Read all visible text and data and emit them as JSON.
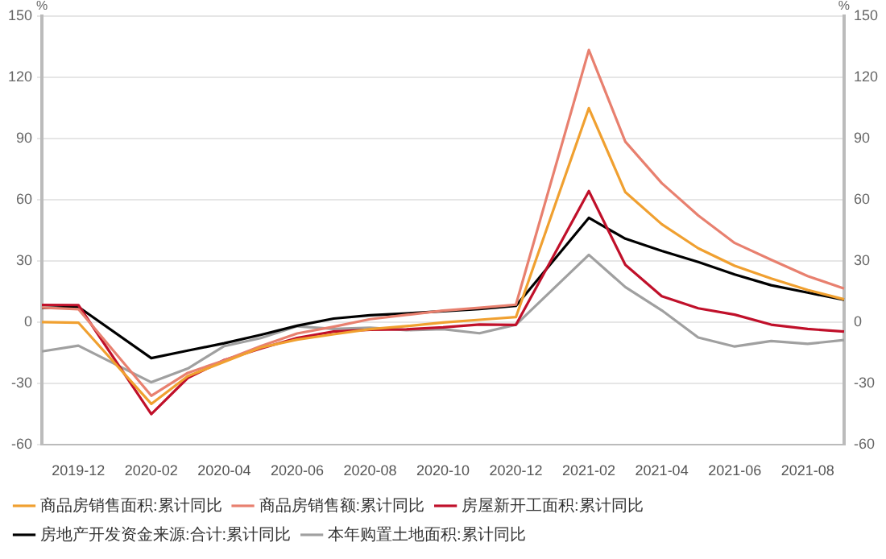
{
  "chart_data": {
    "type": "line",
    "ylabel": "%",
    "y2label": "%",
    "categories": [
      null,
      "2019-12",
      null,
      "2020-02",
      null,
      "2020-04",
      null,
      "2020-06",
      null,
      "2020-08",
      null,
      "2020-10",
      null,
      "2020-12",
      null,
      "2021-02",
      null,
      "2021-04",
      null,
      "2021-06",
      null,
      "2021-08",
      null
    ],
    "series": [
      {
        "name": "商品房销售面积:累计同比",
        "color": "#f0a030",
        "values": [
          0.2,
          -0.1,
          null,
          -39.9,
          -26.3,
          -19.3,
          -12.3,
          -8.4,
          -5.8,
          -3.3,
          -1.8,
          0,
          1.3,
          2.6,
          null,
          104.9,
          63.8,
          48.1,
          36.3,
          27.7,
          21.5,
          15.9,
          11.3
        ]
      },
      {
        "name": "商品房销售额:累计同比",
        "color": "#e8806f",
        "values": [
          7.3,
          6.5,
          null,
          -35.9,
          -24.7,
          -18.6,
          -11.6,
          -5.4,
          -2.1,
          1.6,
          3.7,
          5.8,
          7.2,
          8.7,
          null,
          133.4,
          88.5,
          68.2,
          52.4,
          38.9,
          30.7,
          22.7,
          16.6
        ]
      },
      {
        "name": "房屋新开工面积:累计同比",
        "color": "#c0102a",
        "values": [
          8.6,
          8.5,
          null,
          -44.9,
          -27.2,
          -18.4,
          -12.8,
          -7.6,
          -4.5,
          -3.6,
          -3.4,
          -2.4,
          -1.0,
          -1.2,
          null,
          64.3,
          28.2,
          12.8,
          6.9,
          3.8,
          -1.1,
          -3.2,
          -4.5
        ]
      },
      {
        "name": "房地产开发资金来源:合计:累计同比",
        "color": "#000000",
        "values": [
          7.1,
          7.6,
          null,
          -17.5,
          -13.8,
          -10.2,
          -6.1,
          -1.6,
          1.9,
          3.5,
          4.4,
          5.5,
          6.6,
          8.1,
          null,
          51.2,
          41.0,
          35.0,
          29.6,
          23.5,
          18.2,
          14.6,
          11.1
        ]
      },
      {
        "name": "本年购置土地面积:累计同比",
        "color": "#a0a0a0",
        "values": [
          -14.2,
          -11.4,
          null,
          -29.3,
          -22.6,
          -11.6,
          -7.7,
          -1.9,
          -3.2,
          -2.6,
          -3.8,
          -3.3,
          -5.3,
          -1.1,
          null,
          33.1,
          17.3,
          5.9,
          -7.4,
          -11.8,
          -9.1,
          -10.5,
          -8.6
        ]
      }
    ],
    "ylim": [
      -60,
      150
    ],
    "yticks": [
      -60,
      -30,
      0,
      30,
      60,
      90,
      120,
      150
    ],
    "y2lim": [
      -60,
      150
    ],
    "y2ticks": [
      -60,
      -30,
      0,
      30,
      60,
      90,
      120,
      150
    ],
    "grid": "y",
    "legend": "bottom",
    "marker": "none",
    "line_style": "solid"
  }
}
